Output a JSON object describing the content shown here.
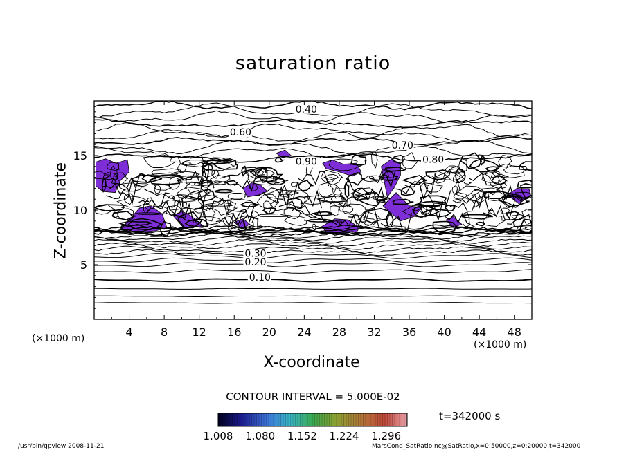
{
  "chart_data": {
    "type": "contour",
    "title": "saturation ratio",
    "xlabel": "X-coordinate",
    "ylabel": "Z-coordinate",
    "x_unit_label": "(×1000 m)",
    "x_unit_label_right": "(×1000 m)",
    "xlim": [
      0,
      50
    ],
    "ylim": [
      0,
      20
    ],
    "x_ticks": [
      4,
      8,
      12,
      16,
      20,
      24,
      28,
      32,
      36,
      40,
      44,
      48
    ],
    "y_ticks": [
      5,
      10,
      15
    ],
    "contour_interval_text": "CONTOUR INTERVAL = 5.000E-02",
    "contour_labels": [
      {
        "text": "0.10",
        "x": 17.7,
        "z": 3.6
      },
      {
        "text": "0.20",
        "x": 17.2,
        "z": 5.0
      },
      {
        "text": "0.30",
        "x": 17.2,
        "z": 5.8
      },
      {
        "text": "0.40",
        "x": 23.0,
        "z": 19.0
      },
      {
        "text": "0.60",
        "x": 15.5,
        "z": 16.9
      },
      {
        "text": "0.70",
        "x": 34.0,
        "z": 15.7
      },
      {
        "text": "0.80",
        "x": 37.5,
        "z": 14.4
      },
      {
        "text": "0.90",
        "x": 23.0,
        "z": 14.2
      }
    ],
    "shaded_threshold": 1.0,
    "shaded_regions": [
      {
        "x": [
          0.2,
          1.3,
          2.5,
          3.8,
          4.0,
          3.0,
          2.4,
          1.0,
          0.2
        ],
        "z": [
          14.4,
          14.7,
          14.3,
          14.6,
          13.5,
          12.7,
          11.6,
          11.7,
          12.2
        ]
      },
      {
        "x": [
          3.0,
          4.2,
          5.2,
          6.5,
          7.8,
          8.3,
          7.0,
          5.5,
          4.0,
          3.0
        ],
        "z": [
          8.2,
          9.3,
          10.2,
          10.4,
          9.6,
          8.4,
          8.1,
          8.0,
          8.1,
          8.2
        ]
      },
      {
        "x": [
          9.0,
          10.0,
          11.0,
          11.8,
          12.5,
          10.2,
          9.0
        ],
        "z": [
          9.5,
          9.9,
          9.5,
          9.0,
          8.5,
          8.4,
          9.5
        ]
      },
      {
        "x": [
          17.0,
          18.0,
          19.0,
          19.8,
          18.8,
          17.5,
          17.0
        ],
        "z": [
          12.0,
          12.5,
          12.3,
          11.7,
          11.4,
          11.2,
          12.0
        ]
      },
      {
        "x": [
          16.0,
          17.0,
          17.8,
          16.8,
          16.0
        ],
        "z": [
          8.9,
          9.2,
          8.7,
          8.3,
          8.9
        ]
      },
      {
        "x": [
          26.1,
          27.2,
          28.5,
          30.0,
          30.5,
          29.5,
          28.0,
          26.5,
          26.1
        ],
        "z": [
          14.3,
          14.6,
          14.2,
          14.3,
          13.5,
          13.1,
          13.5,
          13.8,
          14.3
        ]
      },
      {
        "x": [
          32.8,
          34.0,
          35.0,
          35.0,
          34.3,
          33.5,
          32.8
        ],
        "z": [
          14.0,
          14.7,
          14.2,
          13.2,
          12.1,
          11.2,
          14.0
        ]
      },
      {
        "x": [
          26.0,
          27.5,
          29.0,
          30.3,
          30.0,
          28.0,
          26.5,
          26.0
        ],
        "z": [
          8.5,
          9.2,
          9.1,
          8.4,
          8.0,
          7.9,
          8.0,
          8.5
        ]
      },
      {
        "x": [
          33.0,
          34.5,
          35.5,
          36.0,
          37.5,
          36.5,
          35.0,
          33.8,
          33.0
        ],
        "z": [
          10.4,
          11.6,
          10.8,
          10.4,
          10.2,
          9.4,
          9.0,
          9.8,
          10.4
        ]
      },
      {
        "x": [
          40.2,
          41.0,
          42.0,
          41.0,
          40.2
        ],
        "z": [
          9.1,
          9.4,
          8.7,
          8.4,
          9.1
        ]
      },
      {
        "x": [
          47.2,
          48.3,
          49.7,
          49.9,
          48.5,
          47.2
        ],
        "z": [
          11.4,
          12.0,
          11.9,
          11.3,
          10.6,
          11.4
        ]
      },
      {
        "x": [
          20.8,
          21.8,
          22.5,
          21.5,
          20.8
        ],
        "z": [
          15.2,
          15.5,
          15.0,
          14.8,
          15.2
        ]
      }
    ],
    "colorbar": {
      "min": 1.008,
      "max": 1.332,
      "tick_labels": [
        "1.008",
        "1.080",
        "1.152",
        "1.224",
        "1.296"
      ]
    },
    "time_label": "t=342000 s",
    "colors": {
      "shade": "#7d2ed6",
      "shade_core": "#3f6ee0",
      "line": "#000000"
    }
  },
  "footer": {
    "left": "/usr/bin/gpview  2008-11-21",
    "right": "MarsCond_SatRatio.nc@SatRatio,x=0:50000,z=0:20000,t=342000"
  }
}
